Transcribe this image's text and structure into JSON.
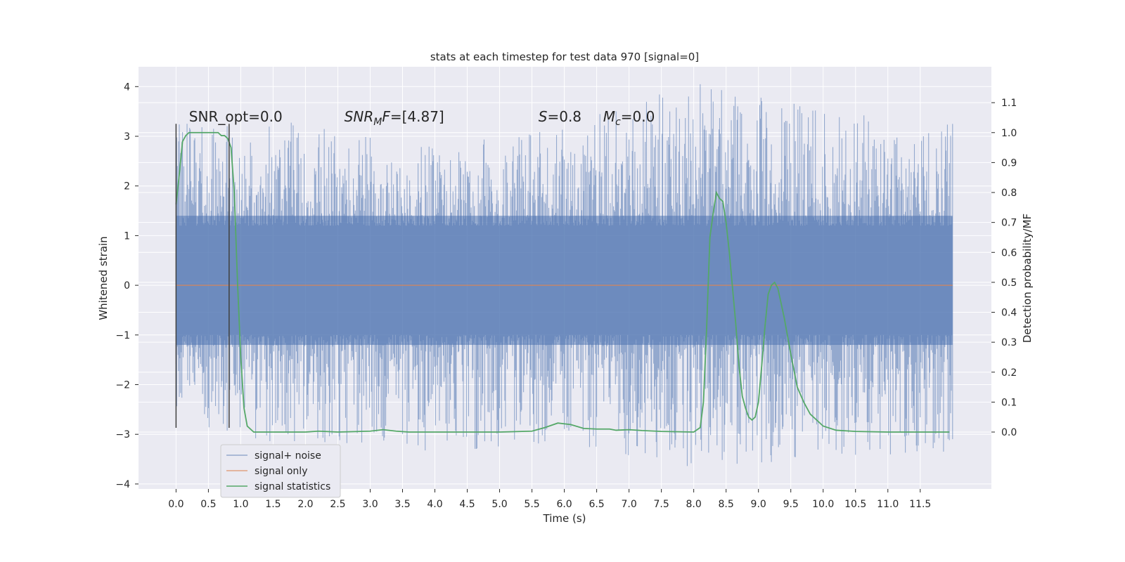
{
  "chart_data": {
    "type": "line",
    "title": "stats at each timestep for test data 970 [signal=0]",
    "xlabel": "Time (s)",
    "ylabel": "Whitened strain",
    "y2label": "Detection probability/MF",
    "xlim": [
      -0.58,
      12.6
    ],
    "ylim": [
      -4.1,
      4.4
    ],
    "y2lim": [
      -0.19,
      1.22
    ],
    "x_ticks": [
      0.0,
      0.5,
      1.0,
      1.5,
      2.0,
      2.5,
      3.0,
      3.5,
      4.0,
      4.5,
      5.0,
      5.5,
      6.0,
      6.5,
      7.0,
      7.5,
      8.0,
      8.5,
      9.0,
      9.5,
      10.0,
      10.5,
      11.0,
      11.5
    ],
    "x_tick_labels": [
      "0.0",
      "0.5",
      "1.0",
      "1.5",
      "2.0",
      "2.5",
      "3.0",
      "3.5",
      "4.0",
      "4.5",
      "5.0",
      "5.5",
      "6.0",
      "6.5",
      "7.0",
      "7.5",
      "8.0",
      "8.5",
      "9.0",
      "9.5",
      "10.0",
      "10.5",
      "11.0",
      "11.5"
    ],
    "y_ticks": [
      -4,
      -3,
      -2,
      -1,
      0,
      1,
      2,
      3,
      4
    ],
    "y_tick_labels": [
      "−4",
      "−3",
      "−2",
      "−1",
      "0",
      "1",
      "2",
      "3",
      "4"
    ],
    "y2_ticks": [
      0.0,
      0.1,
      0.2,
      0.3,
      0.4,
      0.5,
      0.6,
      0.7,
      0.8,
      0.9,
      1.0,
      1.1
    ],
    "y2_tick_labels": [
      "0.0",
      "0.1",
      "0.2",
      "0.3",
      "0.4",
      "0.5",
      "0.6",
      "0.7",
      "0.8",
      "0.9",
      "1.0",
      "1.1"
    ],
    "grid": true,
    "legend_position": "lower-left",
    "series": [
      {
        "name": "signal+ noise",
        "color": "#4c72b0",
        "style": "dense noise band",
        "x_range": [
          0.0,
          12.0
        ],
        "envelope": {
          "x": [
            0.0,
            2.0,
            4.0,
            6.0,
            8.0,
            10.0,
            12.0
          ],
          "upper": [
            3.25,
            3.3,
            2.8,
            3.2,
            4.1,
            3.55,
            3.25
          ],
          "lower": [
            -2.85,
            -3.25,
            -3.4,
            -3.15,
            -3.7,
            -3.5,
            -3.35
          ]
        }
      },
      {
        "name": "signal only",
        "color": "#dd8452",
        "axis": "left",
        "x": [
          0.0,
          12.0
        ],
        "y": [
          0.0,
          0.0
        ]
      },
      {
        "name": "signal statistics",
        "color": "#55a868",
        "axis": "right",
        "x": [
          0.0,
          0.05,
          0.1,
          0.15,
          0.2,
          0.3,
          0.4,
          0.5,
          0.6,
          0.65,
          0.7,
          0.75,
          0.8,
          0.85,
          0.9,
          0.95,
          1.0,
          1.05,
          1.1,
          1.2,
          1.5,
          2.0,
          2.2,
          2.5,
          3.0,
          3.2,
          3.4,
          3.6,
          4.0,
          5.0,
          5.5,
          5.7,
          5.9,
          6.1,
          6.3,
          6.5,
          6.7,
          6.8,
          7.0,
          7.2,
          7.5,
          8.0,
          8.1,
          8.15,
          8.2,
          8.25,
          8.3,
          8.35,
          8.4,
          8.45,
          8.5,
          8.55,
          8.6,
          8.65,
          8.7,
          8.75,
          8.8,
          8.85,
          8.9,
          8.95,
          9.0,
          9.05,
          9.1,
          9.15,
          9.2,
          9.25,
          9.3,
          9.35,
          9.4,
          9.5,
          9.6,
          9.7,
          9.8,
          10.0,
          10.2,
          10.5,
          11.0,
          11.5,
          11.95
        ],
        "y": [
          0.76,
          0.86,
          0.97,
          0.99,
          1.0,
          1.0,
          1.0,
          1.0,
          1.0,
          1.0,
          0.99,
          0.99,
          0.98,
          0.95,
          0.8,
          0.5,
          0.25,
          0.08,
          0.02,
          0.0,
          0.0,
          0.0,
          0.003,
          0.0,
          0.003,
          0.008,
          0.003,
          0.0,
          0.0,
          0.0,
          0.003,
          0.015,
          0.03,
          0.025,
          0.012,
          0.01,
          0.01,
          0.006,
          0.008,
          0.005,
          0.002,
          0.0,
          0.015,
          0.1,
          0.35,
          0.65,
          0.73,
          0.8,
          0.78,
          0.77,
          0.7,
          0.6,
          0.48,
          0.36,
          0.22,
          0.12,
          0.08,
          0.05,
          0.04,
          0.05,
          0.1,
          0.22,
          0.35,
          0.46,
          0.49,
          0.5,
          0.48,
          0.43,
          0.38,
          0.26,
          0.15,
          0.1,
          0.06,
          0.02,
          0.006,
          0.002,
          0.0,
          0.0,
          0.0
        ]
      }
    ],
    "markers": [
      {
        "x": 0.0,
        "y_range": [
          -2.87,
          3.25
        ],
        "color": "#404040"
      },
      {
        "x": 0.82,
        "y_range": [
          -2.87,
          3.25
        ],
        "color": "#404040"
      }
    ],
    "annotations": [
      {
        "text": "SNR_opt=0.0",
        "x": 0.2,
        "y": 3.3
      },
      {
        "text": "SNR_MF=[4.87]",
        "x": 2.6,
        "y": 3.3
      },
      {
        "text": "S=0.8",
        "x": 5.6,
        "y": 3.3
      },
      {
        "text": "M_c=0.0",
        "x": 6.6,
        "y": 3.3
      }
    ]
  }
}
